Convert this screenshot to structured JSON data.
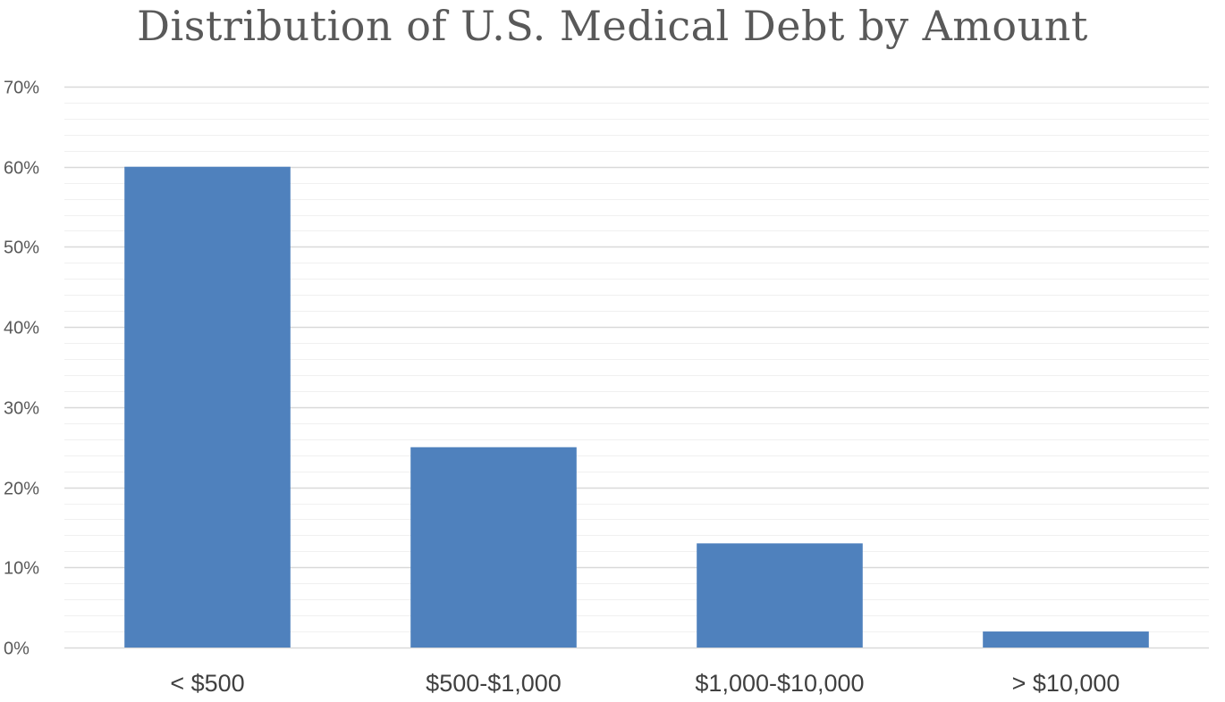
{
  "chart_data": {
    "type": "bar",
    "title": "Distribution of U.S. Medical Debt by Amount",
    "xlabel": "",
    "ylabel": "",
    "categories": [
      "< $500",
      "$500-$1,000",
      "$1,000-$10,000",
      "> $10,000"
    ],
    "values": [
      60,
      25,
      13,
      2
    ],
    "value_unit": "%",
    "ylim": [
      0,
      70
    ],
    "yticks": [
      0,
      10,
      20,
      30,
      40,
      50,
      60,
      70
    ],
    "ytick_labels": [
      "0%",
      "10%",
      "20%",
      "30%",
      "40%",
      "50%",
      "60%",
      "70%"
    ],
    "grid": true,
    "minor_grid": true,
    "legend": "none",
    "colors": {
      "bar": "#4F81BD",
      "major_grid": "#d9d9d9",
      "minor_grid": "#f0f0f0",
      "text": "#595959"
    }
  }
}
